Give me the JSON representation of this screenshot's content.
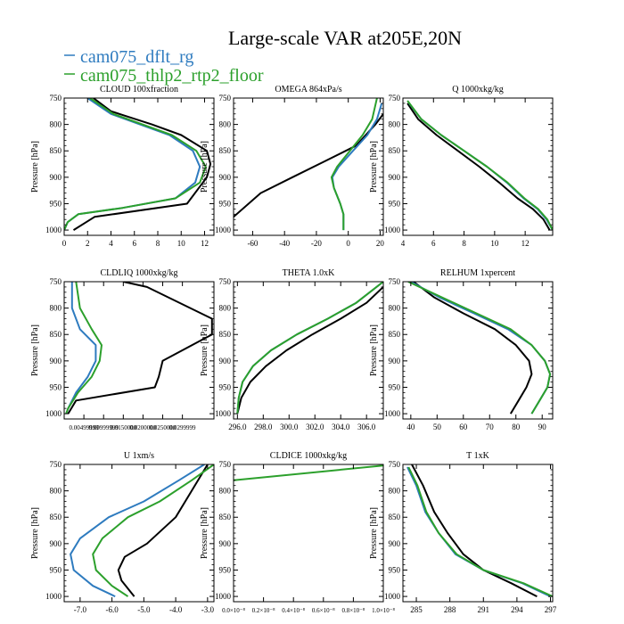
{
  "figure": {
    "title": "Large-scale VAR at205E,20N",
    "legend": [
      {
        "name": "cam075_dflt_rg",
        "color": "#2E7BBF"
      },
      {
        "name": "cam075_thlp2_rtp2_floor",
        "color": "#2CA02C"
      }
    ]
  },
  "colors": {
    "control": "#000000",
    "dflt": "#2E7BBF",
    "thlp2": "#2CA02C"
  },
  "chart_data": [
    {
      "type": "line",
      "title": "CLOUD  100xfraction",
      "ylabel": "Pressure [hPa]",
      "xlim": [
        0,
        12.8
      ],
      "ylim": [
        750,
        1010
      ],
      "xticks": [
        0,
        2,
        4,
        6,
        8,
        10,
        12
      ],
      "xticklabels": [
        "0",
        "2",
        "4",
        "6",
        "8",
        "10",
        "12"
      ],
      "yticks": [
        750,
        800,
        850,
        900,
        950,
        1000
      ],
      "yticklabels": [
        "750",
        "800",
        "850",
        "900",
        "950",
        "1000"
      ],
      "series": [
        {
          "line": "black",
          "x": [
            0.8,
            2.6,
            10.5,
            12.2,
            12.5,
            12.2,
            10,
            7.5,
            4,
            2.5
          ],
          "y": [
            1000,
            975,
            950,
            900,
            875,
            850,
            820,
            800,
            775,
            750
          ]
        },
        {
          "line": "blue",
          "x": [
            0,
            0.3,
            1.2,
            5,
            9.5,
            11.2,
            11.6,
            11,
            9,
            4,
            2
          ],
          "y": [
            1000,
            985,
            970,
            958,
            940,
            910,
            880,
            850,
            820,
            780,
            750
          ]
        },
        {
          "line": "green",
          "x": [
            0,
            0.3,
            1.2,
            5,
            9.5,
            11.6,
            12.1,
            11.3,
            9.2,
            4.2,
            2.2
          ],
          "y": [
            1000,
            985,
            970,
            958,
            940,
            910,
            880,
            850,
            820,
            780,
            750
          ]
        }
      ]
    },
    {
      "type": "line",
      "title": "OMEGA  864xPa/s",
      "ylabel": "Pressure [hPa]",
      "xlim": [
        -72,
        22
      ],
      "ylim": [
        750,
        1010
      ],
      "xticks": [
        -60,
        -40,
        -20,
        0,
        20
      ],
      "xticklabels": [
        "-60",
        "-40",
        "-20",
        "0",
        "20"
      ],
      "yticks": [
        750,
        800,
        850,
        900,
        950,
        1000
      ],
      "yticklabels": [
        "750",
        "800",
        "850",
        "900",
        "950",
        "1000"
      ],
      "series": [
        {
          "line": "black",
          "x": [
            -72,
            -55,
            -35,
            -15,
            5,
            17,
            22
          ],
          "y": [
            975,
            930,
            900,
            870,
            840,
            800,
            780
          ]
        },
        {
          "line": "blue",
          "x": [
            -3,
            -3,
            -5,
            -9,
            -10,
            -6,
            3,
            12,
            18,
            21
          ],
          "y": [
            1000,
            970,
            950,
            920,
            900,
            880,
            850,
            820,
            790,
            760
          ]
        },
        {
          "line": "green",
          "x": [
            -3,
            -3,
            -5,
            -9,
            -10.5,
            -7,
            1,
            9,
            15,
            18
          ],
          "y": [
            1000,
            970,
            950,
            920,
            900,
            880,
            850,
            820,
            790,
            750
          ]
        }
      ]
    },
    {
      "type": "line",
      "title": "Q  1000xkg/kg",
      "ylabel": "Pressure [hPa]",
      "xlim": [
        4,
        13.8
      ],
      "ylim": [
        750,
        1010
      ],
      "xticks": [
        4,
        6,
        8,
        10,
        12
      ],
      "xticklabels": [
        "4",
        "6",
        "8",
        "10",
        "12"
      ],
      "yticks": [
        750,
        800,
        850,
        900,
        950,
        1000
      ],
      "yticklabels": [
        "750",
        "800",
        "850",
        "900",
        "950",
        "1000"
      ],
      "series": [
        {
          "line": "black",
          "x": [
            13.6,
            13.2,
            12.5,
            11.5,
            10.3,
            9,
            7.6,
            6.2,
            5,
            4.3
          ],
          "y": [
            1000,
            980,
            960,
            940,
            910,
            880,
            850,
            820,
            790,
            760
          ]
        },
        {
          "line": "blue",
          "x": [
            13.8,
            13.4,
            12.8,
            11.9,
            10.8,
            9.5,
            8,
            6.5,
            5.2,
            4.4
          ],
          "y": [
            1000,
            980,
            960,
            940,
            910,
            880,
            850,
            820,
            790,
            760
          ]
        },
        {
          "line": "green",
          "x": [
            13.8,
            13.45,
            12.85,
            11.95,
            10.85,
            9.5,
            8,
            6.5,
            5.2,
            4.3
          ],
          "y": [
            1000,
            980,
            960,
            940,
            910,
            880,
            850,
            820,
            790,
            755
          ]
        }
      ]
    },
    {
      "type": "line",
      "title": "CLDLIQ  1000xkg/kg",
      "ylabel": "Pressure [hPa]",
      "xlim": [
        0,
        0.038
      ],
      "ylim": [
        750,
        1010
      ],
      "xticks": [
        0.005,
        0.01,
        0.015,
        0.02,
        0.025,
        0.03
      ],
      "xticklabels": [
        "0.00499999",
        "0.00999999",
        "0.0150000",
        "0.0200000",
        "0.0250000",
        "0.0299999"
      ],
      "yticks": [
        750,
        800,
        850,
        900,
        950,
        1000
      ],
      "yticklabels": [
        "750",
        "800",
        "850",
        "900",
        "950",
        "1000"
      ],
      "series": [
        {
          "line": "black",
          "x": [
            0.001,
            0.003,
            0.023,
            0.024,
            0.025,
            0.0375,
            0.0375,
            0.021,
            0.015
          ],
          "y": [
            1000,
            975,
            950,
            930,
            900,
            850,
            820,
            760,
            750
          ]
        },
        {
          "line": "blue",
          "x": [
            0.0005,
            0.001,
            0.003,
            0.006,
            0.008,
            0.008,
            0.004,
            0.002,
            0.002
          ],
          "y": [
            1000,
            990,
            960,
            930,
            900,
            870,
            840,
            800,
            750
          ]
        },
        {
          "line": "green",
          "x": [
            0.0005,
            0.001,
            0.0035,
            0.007,
            0.009,
            0.0095,
            0.007,
            0.004,
            0.003
          ],
          "y": [
            1000,
            990,
            960,
            930,
            900,
            870,
            840,
            800,
            750
          ]
        }
      ]
    },
    {
      "type": "line",
      "title": "THETA  1.0xK",
      "ylabel": "Pressure [hPa]",
      "xlim": [
        295.7,
        307.3
      ],
      "ylim": [
        750,
        1010
      ],
      "xticks": [
        296,
        298,
        300,
        302,
        304,
        306
      ],
      "xticklabels": [
        "296.0",
        "298.0",
        "300.0",
        "302.0",
        "304.0",
        "306.0"
      ],
      "yticks": [
        750,
        800,
        850,
        900,
        950,
        1000
      ],
      "yticklabels": [
        "750",
        "800",
        "850",
        "900",
        "950",
        "1000"
      ],
      "series": [
        {
          "line": "black",
          "x": [
            296,
            296.3,
            297,
            298.2,
            299.8,
            301.8,
            304,
            306,
            307.3
          ],
          "y": [
            1000,
            970,
            940,
            910,
            880,
            850,
            820,
            790,
            760
          ]
        },
        {
          "line": "blue",
          "x": [
            296,
            296.1,
            296.4,
            297.2,
            298.6,
            300.6,
            303,
            305.2,
            307.3
          ],
          "y": [
            1000,
            970,
            940,
            910,
            880,
            850,
            820,
            790,
            750
          ]
        },
        {
          "line": "green",
          "x": [
            296,
            296.1,
            296.4,
            297.2,
            298.6,
            300.6,
            303,
            305.2,
            307.3
          ],
          "y": [
            1000,
            970,
            940,
            910,
            880,
            850,
            820,
            790,
            750
          ]
        }
      ]
    },
    {
      "type": "line",
      "title": "RELHUM  1xpercent",
      "ylabel": "Pressure [hPa]",
      "xlim": [
        37,
        94
      ],
      "ylim": [
        750,
        1010
      ],
      "xticks": [
        40,
        50,
        60,
        70,
        80,
        90
      ],
      "xticklabels": [
        "40",
        "50",
        "60",
        "70",
        "80",
        "90"
      ],
      "yticks": [
        750,
        800,
        850,
        900,
        950,
        1000
      ],
      "yticklabels": [
        "750",
        "800",
        "850",
        "900",
        "950",
        "1000"
      ],
      "series": [
        {
          "line": "black",
          "x": [
            78,
            81,
            84,
            86,
            85,
            80,
            72,
            60,
            49,
            41
          ],
          "y": [
            1000,
            975,
            950,
            925,
            900,
            870,
            840,
            810,
            780,
            750
          ]
        },
        {
          "line": "blue",
          "x": [
            86,
            89,
            92,
            93,
            91,
            86,
            77,
            64,
            51,
            40
          ],
          "y": [
            1000,
            975,
            950,
            925,
            900,
            870,
            840,
            810,
            780,
            750
          ]
        },
        {
          "line": "green",
          "x": [
            86,
            89,
            92,
            93,
            91,
            86,
            78,
            65,
            52,
            39
          ],
          "y": [
            1000,
            975,
            950,
            925,
            900,
            870,
            840,
            810,
            780,
            750
          ]
        }
      ]
    },
    {
      "type": "line",
      "title": "U  1xm/s",
      "ylabel": "Pressure [hPa]",
      "xlim": [
        -7.5,
        -2.8
      ],
      "ylim": [
        750,
        1010
      ],
      "xticks": [
        -7,
        -6,
        -5,
        -4,
        -3
      ],
      "xticklabels": [
        "-7.0",
        "-6.0",
        "-5.0",
        "-4.0",
        "-3.0"
      ],
      "yticks": [
        750,
        800,
        850,
        900,
        950,
        1000
      ],
      "yticklabels": [
        "750",
        "800",
        "850",
        "900",
        "950",
        "1000"
      ],
      "series": [
        {
          "line": "black",
          "x": [
            -5.3,
            -5.7,
            -5.8,
            -5.6,
            -4.9,
            -4.0,
            -3.5,
            -3.0
          ],
          "y": [
            1000,
            970,
            950,
            925,
            900,
            850,
            800,
            750
          ]
        },
        {
          "line": "blue",
          "x": [
            -5.9,
            -6.6,
            -7.2,
            -7.3,
            -7.0,
            -6.1,
            -5.0,
            -3.9,
            -3.1
          ],
          "y": [
            1000,
            980,
            950,
            920,
            890,
            850,
            820,
            780,
            750
          ]
        },
        {
          "line": "green",
          "x": [
            -5.5,
            -6.0,
            -6.5,
            -6.6,
            -6.3,
            -5.5,
            -4.5,
            -3.5,
            -2.8
          ],
          "y": [
            1000,
            980,
            950,
            920,
            890,
            850,
            820,
            780,
            750
          ]
        }
      ]
    },
    {
      "type": "line",
      "title": "CLDICE  1000xkg/kg",
      "ylabel": "Pressure [hPa]",
      "xlim": [
        0,
        1e-08
      ],
      "ylim": [
        750,
        1010
      ],
      "xticks": [
        0,
        2e-09,
        4e-09,
        6e-09,
        8e-09,
        1e-08
      ],
      "xticklabels": [
        "0.0×10⁻⁸",
        "0.2×10⁻⁸",
        "0.4×10⁻⁸",
        "0.6×10⁻⁸",
        "0.8×10⁻⁸",
        "1.0×10⁻⁸"
      ],
      "yticks": [
        750,
        800,
        850,
        900,
        950,
        1000
      ],
      "yticklabels": [
        "750",
        "800",
        "850",
        "900",
        "950",
        "1000"
      ],
      "series": [
        {
          "line": "green",
          "x": [
            0,
            1e-08
          ],
          "y": [
            780,
            752
          ]
        }
      ]
    },
    {
      "type": "line",
      "title": "T  1xK",
      "ylabel": "Pressure [hPa]",
      "xlim": [
        283.8,
        297.2
      ],
      "ylim": [
        750,
        1010
      ],
      "xticks": [
        285,
        288,
        291,
        294,
        297
      ],
      "xticklabels": [
        "285",
        "288",
        "291",
        "294",
        "297"
      ],
      "yticks": [
        750,
        800,
        850,
        900,
        950,
        1000
      ],
      "yticklabels": [
        "750",
        "800",
        "850",
        "900",
        "950",
        "1000"
      ],
      "series": [
        {
          "line": "black",
          "x": [
            295.8,
            293.5,
            291,
            289.2,
            287.8,
            286.6,
            285.6,
            284.6
          ],
          "y": [
            1000,
            975,
            950,
            920,
            880,
            840,
            790,
            750
          ]
        },
        {
          "line": "blue",
          "x": [
            297,
            294.5,
            291,
            288.5,
            287,
            285.8,
            285,
            284.2
          ],
          "y": [
            1000,
            975,
            950,
            920,
            880,
            840,
            790,
            755
          ]
        },
        {
          "line": "green",
          "x": [
            297.2,
            294.6,
            291,
            288.6,
            287,
            285.9,
            285.1,
            284.3
          ],
          "y": [
            1000,
            975,
            950,
            920,
            880,
            840,
            790,
            755
          ]
        }
      ]
    }
  ]
}
